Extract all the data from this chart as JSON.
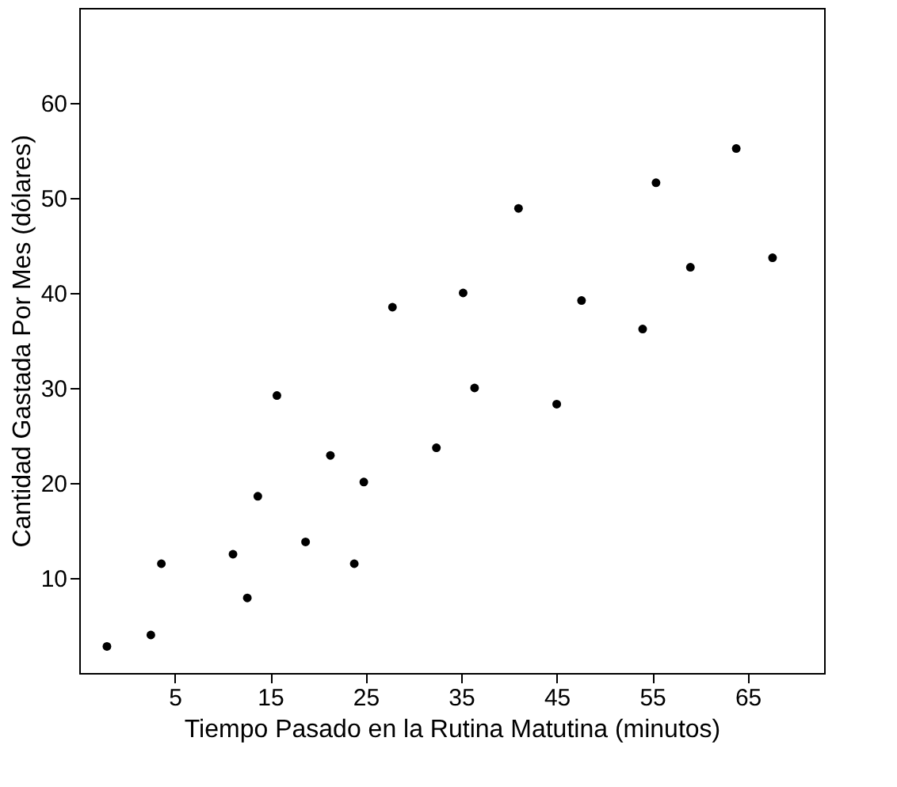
{
  "chart_data": {
    "type": "scatter",
    "xlabel": "Tiempo Pasado en la Rutina Matutina (minutos)",
    "ylabel": "Cantidad Gastada Por Mes (dólares)",
    "x": [
      -2.1,
      2.5,
      3.6,
      11.1,
      12.6,
      13.7,
      15.7,
      18.7,
      21.3,
      23.8,
      24.8,
      27.8,
      32.4,
      35.2,
      36.4,
      41.0,
      45.0,
      47.6,
      54.0,
      55.4,
      59.0,
      63.8,
      67.6
    ],
    "series": [
      {
        "color": "#000000",
        "values": [
          2.8,
          4.0,
          11.5,
          12.5,
          7.9,
          18.6,
          29.2,
          13.8,
          22.9,
          11.5,
          20.1,
          38.5,
          23.7,
          40.0,
          30.0,
          48.9,
          28.3,
          39.2,
          36.2,
          51.6,
          42.7,
          55.2,
          43.7
        ]
      }
    ],
    "xlim": [
      -5,
      73
    ],
    "ylim": [
      0,
      70
    ],
    "xticks": [
      5,
      15,
      25,
      35,
      45,
      55,
      65
    ],
    "yticks": [
      10,
      20,
      30,
      40,
      50,
      60
    ],
    "grid": false,
    "marker": "circle",
    "legend": false
  }
}
